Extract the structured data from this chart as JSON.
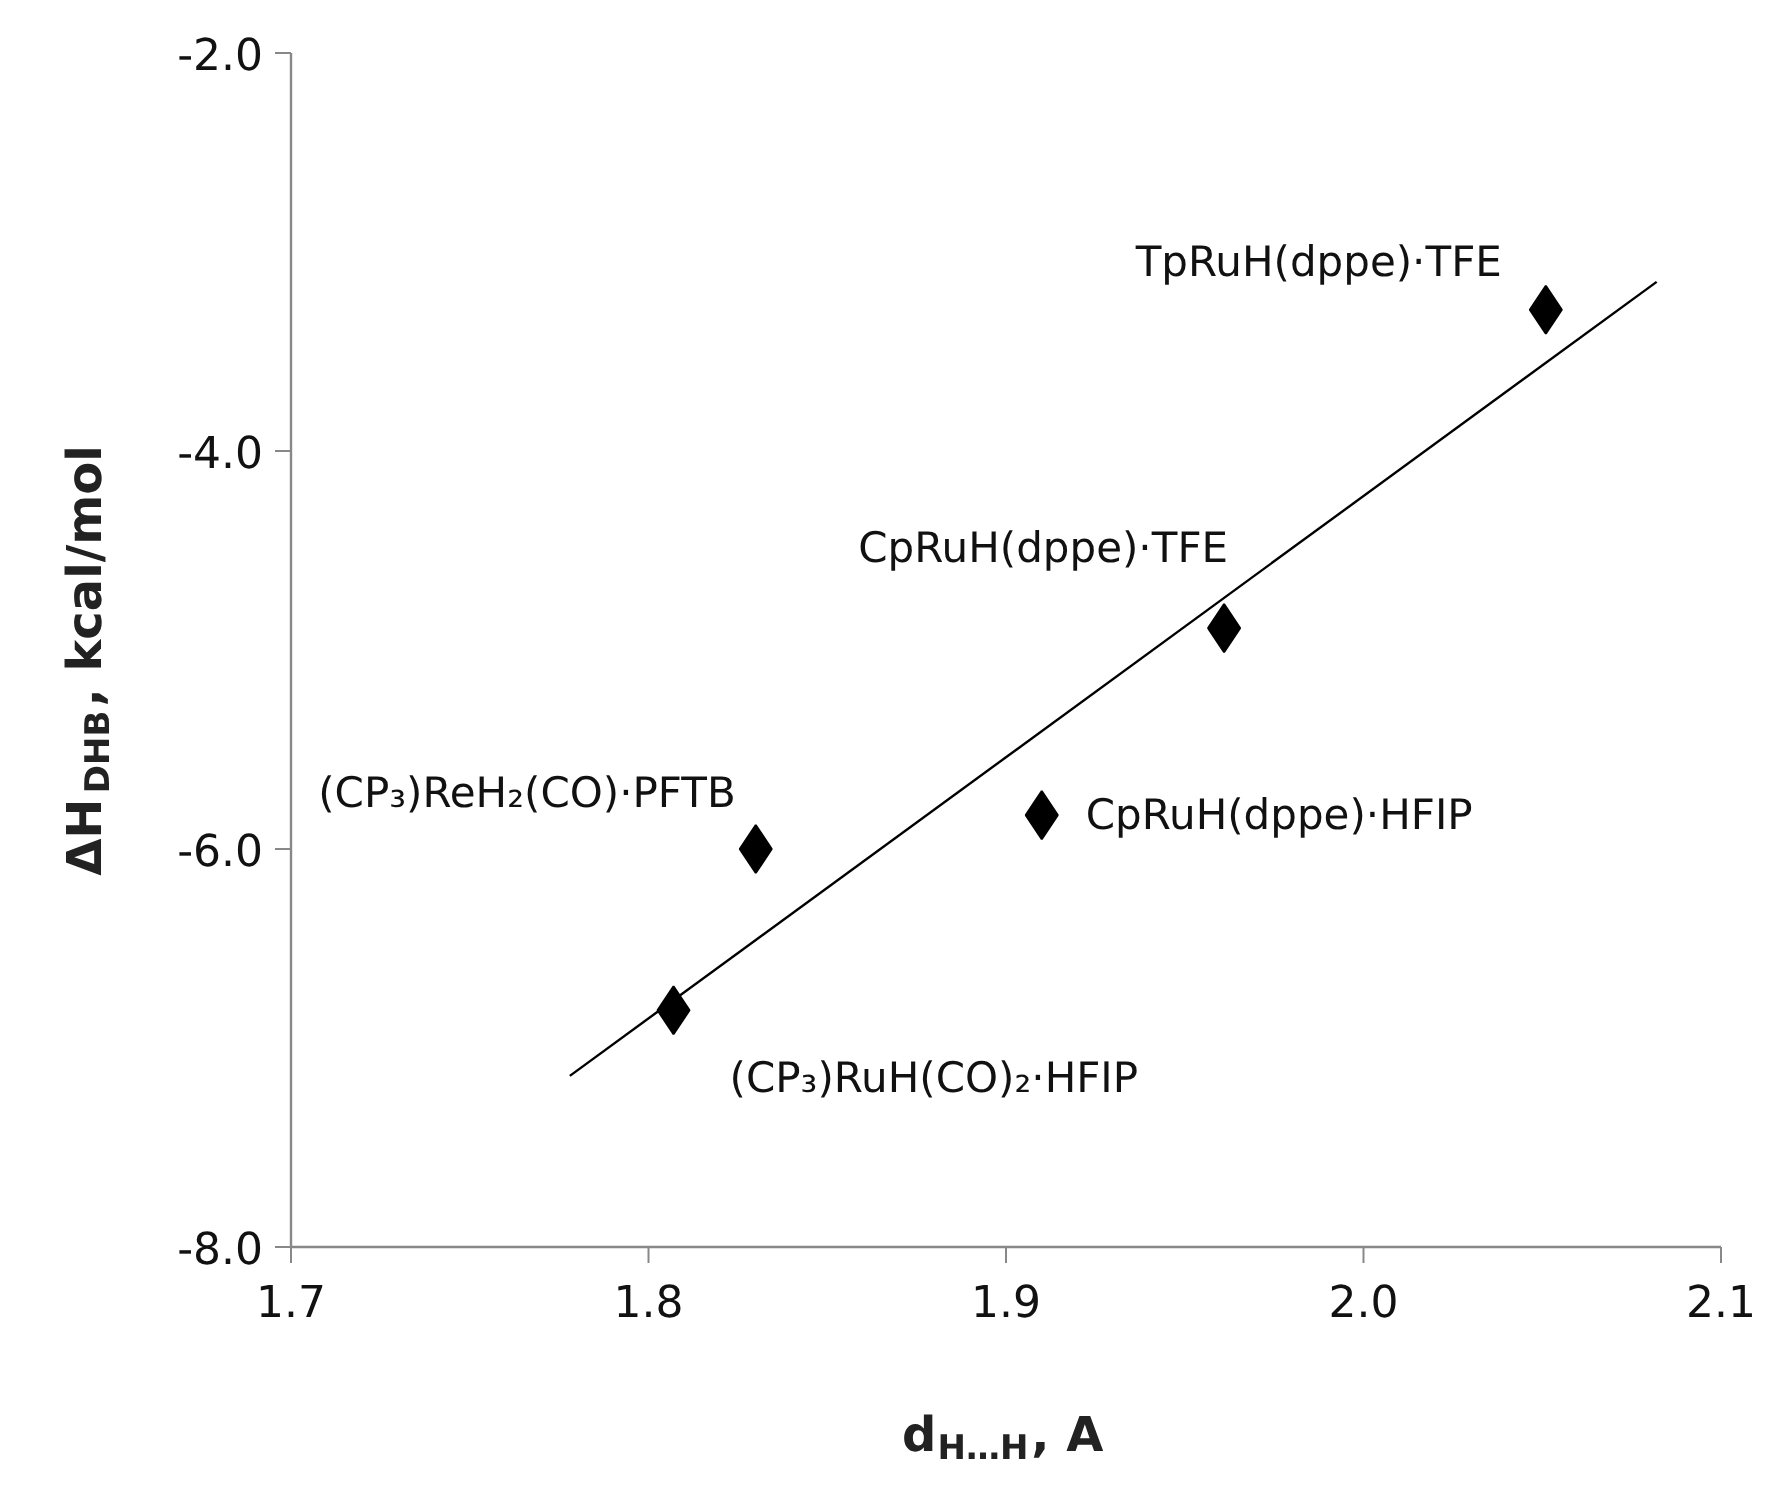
{
  "chart_data": {
    "type": "scatter",
    "xlabel": "d$_{H…H}$, A",
    "ylabel": "ΔH$_{DHB}$, kcal/mol",
    "xlim": [
      1.7,
      2.1
    ],
    "xticks": [
      {
        "value": 1.7,
        "label": "1.7"
      },
      {
        "value": 1.8,
        "label": "1.8"
      },
      {
        "value": 1.9,
        "label": "1.9"
      },
      {
        "value": 2.0,
        "label": "2.0"
      },
      {
        "value": 2.1,
        "label": "2.1"
      }
    ],
    "ylim": [
      -8.0,
      -2.0
    ],
    "yticks": [
      {
        "value": -8.0,
        "label": "-8.0"
      },
      {
        "value": -6.0,
        "label": "-6.0"
      },
      {
        "value": -4.0,
        "label": "-4.0"
      },
      {
        "value": -2.0,
        "label": "-2.0"
      }
    ],
    "grid": false,
    "marker": "diamond",
    "series": [
      {
        "type": "scatter",
        "color": "#000000",
        "x": [
          1.807,
          1.83,
          1.91,
          1.961,
          2.051
        ],
        "values": [
          -6.81,
          -6.0,
          -5.83,
          -4.89,
          -3.29
        ]
      },
      {
        "type": "line",
        "color": "#000000",
        "line_style": "solid",
        "marker": "none",
        "x": [
          1.778,
          2.082
        ],
        "values": [
          -7.14,
          -3.15
        ]
      }
    ],
    "annotations": [
      {
        "text": "(CP₃)RuH(CO)₂·HFIP",
        "x": 1.807,
        "y": -6.81
      },
      {
        "text": "(CP₃)ReH₂(CO)·PFTB",
        "x": 1.83,
        "y": -6.0
      },
      {
        "text": "CpRuH(dppe)·HFIP",
        "x": 1.91,
        "y": -5.83
      },
      {
        "text": "CpRuH(dppe)·TFE",
        "x": 1.961,
        "y": -4.89
      },
      {
        "text": "TpRuH(dppe)·TFE",
        "x": 2.051,
        "y": -3.29
      }
    ]
  }
}
